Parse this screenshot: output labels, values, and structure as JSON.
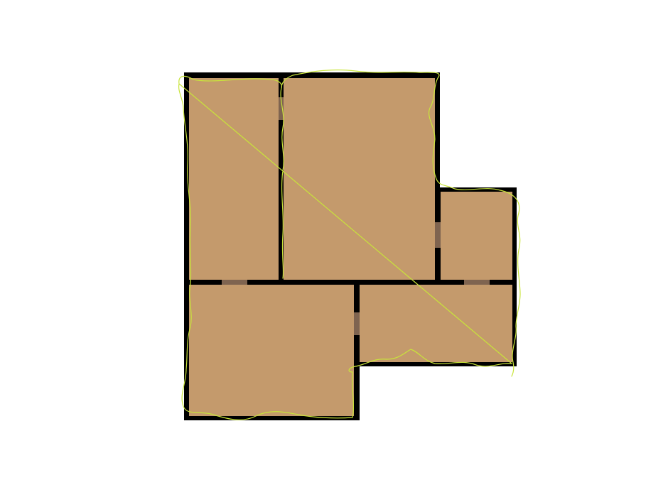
{
  "floorplan": {
    "rooms": [
      {
        "id": "room-top-left",
        "kind": "room"
      },
      {
        "id": "room-top-middle",
        "kind": "room"
      },
      {
        "id": "room-right-small",
        "kind": "room"
      },
      {
        "id": "room-bottom-left",
        "kind": "room"
      },
      {
        "id": "room-bottom-right",
        "kind": "room"
      }
    ],
    "doors": [
      {
        "id": "door-top-left-to-top-middle"
      },
      {
        "id": "door-top-middle-to-right-small"
      },
      {
        "id": "door-top-left-to-bottom-left"
      },
      {
        "id": "door-bottom-left-to-bottom-right"
      },
      {
        "id": "door-right-small-to-bottom-right"
      }
    ],
    "colors": {
      "background": "#ffffff",
      "floor": "#c49a6c",
      "wall": "#000000",
      "door": "#7f6450",
      "outline": "#c8e43a"
    }
  }
}
